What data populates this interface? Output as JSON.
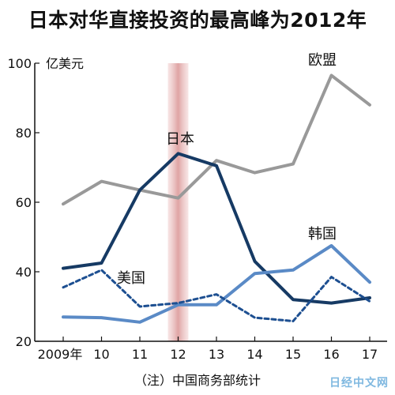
{
  "chart_data": {
    "type": "line",
    "title": "日本对华直接投资的最高峰为2012年",
    "unit_label": "亿美元",
    "x": [
      "2009年",
      "10",
      "11",
      "12",
      "13",
      "14",
      "15",
      "16",
      "17"
    ],
    "ylim": [
      20,
      100
    ],
    "yticks": [
      20,
      40,
      60,
      80,
      100
    ],
    "highlight_x": "12",
    "series": [
      {
        "name": "欧盟",
        "color": "#999999",
        "dash": false,
        "values": [
          59.5,
          66,
          63.5,
          61.2,
          72,
          68.5,
          71,
          96.5,
          88
        ]
      },
      {
        "name": "日本",
        "color": "#163a64",
        "dash": false,
        "values": [
          41,
          42.5,
          63.5,
          74,
          70.5,
          43,
          32,
          31,
          32.5
        ]
      },
      {
        "name": "韩国",
        "color": "#5a8ac6",
        "dash": false,
        "values": [
          27,
          26.8,
          25.5,
          30.5,
          30.5,
          39.5,
          40.5,
          47.5,
          37
        ]
      },
      {
        "name": "美国",
        "color": "#1d4f91",
        "dash": true,
        "values": [
          35.5,
          40.5,
          30,
          31,
          33.5,
          26.8,
          25.8,
          38.5,
          31.5
        ]
      }
    ],
    "note": "（注）中国商务部统计"
  },
  "watermark": "日经中文网"
}
